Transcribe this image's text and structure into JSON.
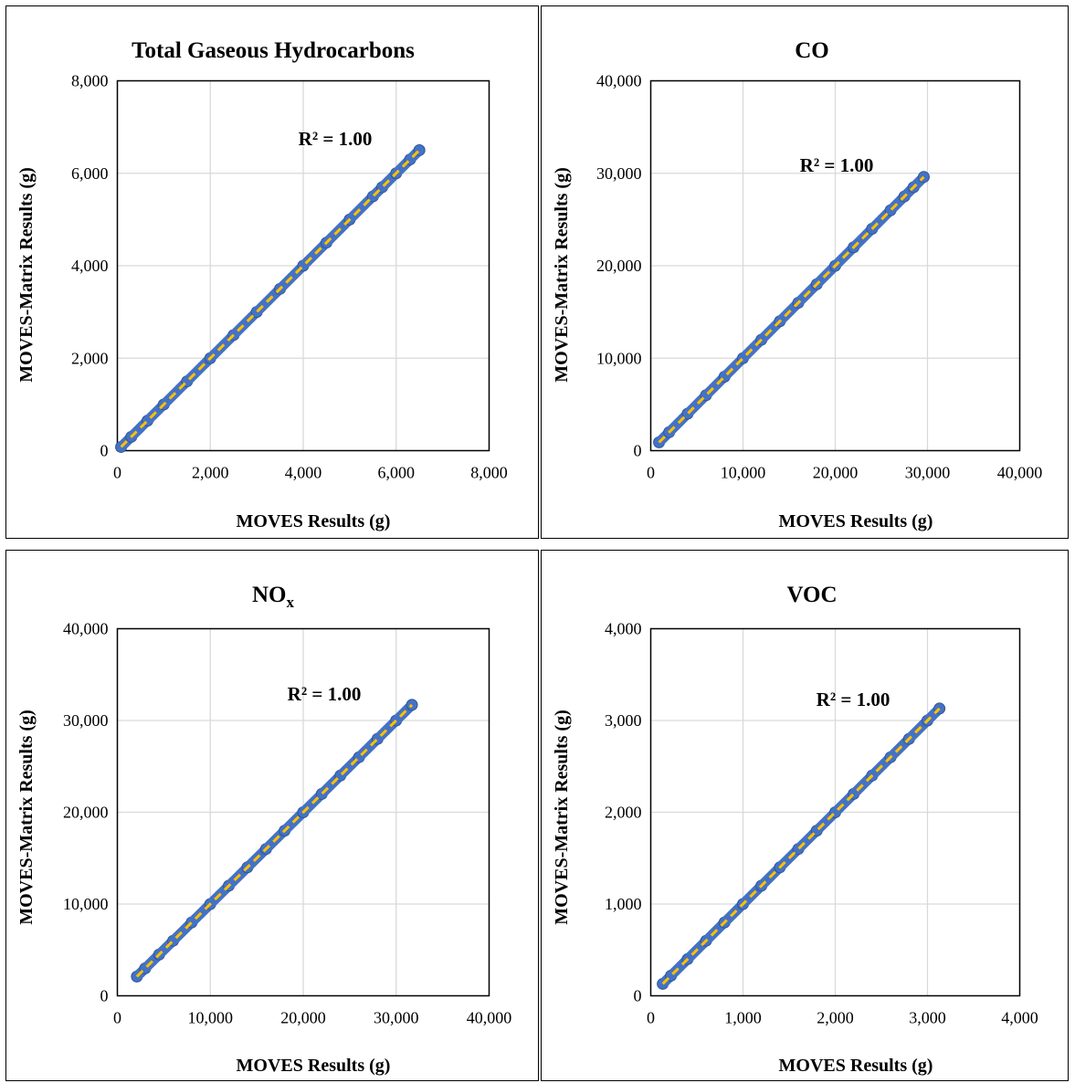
{
  "chart_data": [
    {
      "type": "scatter",
      "title": "Total Gaseous Hydrocarbons",
      "title_sub": "",
      "xlabel": "MOVES  Results (g)",
      "ylabel": "MOVES-Matrix  Results (g)",
      "xlim": [
        0,
        8000
      ],
      "ylim": [
        0,
        8000
      ],
      "xticks": [
        "0",
        "2,000",
        "4,000",
        "6,000",
        "8,000"
      ],
      "yticks": [
        "0",
        "2,000",
        "4,000",
        "6,000",
        "8,000"
      ],
      "grid": true,
      "annotation": "R² = 1.00",
      "series": [
        {
          "x": [
            80,
            300,
            650,
            1000,
            1500,
            2000,
            2500,
            3000,
            3500,
            4000,
            4500,
            5000,
            5500,
            5700,
            6000,
            6300,
            6500
          ],
          "y": [
            80,
            300,
            650,
            1000,
            1500,
            2000,
            2500,
            3000,
            3500,
            4000,
            4500,
            5000,
            5500,
            5700,
            6000,
            6300,
            6500
          ]
        }
      ],
      "trendline": {
        "x": [
          80,
          6500
        ],
        "y": [
          80,
          6500
        ]
      },
      "colors": {
        "marker": "#4472c4",
        "trendline": "#ffc000"
      }
    },
    {
      "type": "scatter",
      "title": "CO",
      "title_sub": "",
      "xlabel": "MOVES  Results (g)",
      "ylabel": "MOVES-Matrix  Results (g)",
      "xlim": [
        0,
        40000
      ],
      "ylim": [
        0,
        40000
      ],
      "xticks": [
        "0",
        "10,000",
        "20,000",
        "30,000",
        "40,000"
      ],
      "yticks": [
        "0",
        "10,000",
        "20,000",
        "30,000",
        "40,000"
      ],
      "grid": true,
      "annotation": "R² = 1.00",
      "series": [
        {
          "x": [
            900,
            2000,
            4000,
            6000,
            8000,
            10000,
            12000,
            14000,
            16000,
            18000,
            20000,
            22000,
            24000,
            26000,
            27500,
            28500,
            29600
          ],
          "y": [
            900,
            2000,
            4000,
            6000,
            8000,
            10000,
            12000,
            14000,
            16000,
            18000,
            20000,
            22000,
            24000,
            26000,
            27500,
            28500,
            29600
          ]
        }
      ],
      "trendline": {
        "x": [
          900,
          29600
        ],
        "y": [
          900,
          29600
        ]
      },
      "colors": {
        "marker": "#4472c4",
        "trendline": "#ffc000"
      }
    },
    {
      "type": "scatter",
      "title": "NO",
      "title_sub": "x",
      "xlabel": "MOVES  Results (g)",
      "ylabel": "MOVES-Matrix  Results (g)",
      "xlim": [
        0,
        40000
      ],
      "ylim": [
        0,
        40000
      ],
      "xticks": [
        "0",
        "10,000",
        "20,000",
        "30,000",
        "40,000"
      ],
      "yticks": [
        "0",
        "10,000",
        "20,000",
        "30,000",
        "40,000"
      ],
      "grid": true,
      "annotation": "R² = 1.00",
      "series": [
        {
          "x": [
            2100,
            3000,
            4500,
            6000,
            8000,
            10000,
            12000,
            14000,
            16000,
            18000,
            20000,
            22000,
            24000,
            26000,
            28000,
            30000,
            31700
          ],
          "y": [
            2100,
            3000,
            4500,
            6000,
            8000,
            10000,
            12000,
            14000,
            16000,
            18000,
            20000,
            22000,
            24000,
            26000,
            28000,
            30000,
            31700
          ]
        }
      ],
      "trendline": {
        "x": [
          2100,
          31700
        ],
        "y": [
          2100,
          31700
        ]
      },
      "colors": {
        "marker": "#4472c4",
        "trendline": "#ffc000"
      }
    },
    {
      "type": "scatter",
      "title": "VOC",
      "title_sub": "",
      "xlabel": "MOVES  Results (g)",
      "ylabel": "MOVES-Matrix  Results (g)",
      "xlim": [
        0,
        4000
      ],
      "ylim": [
        0,
        4000
      ],
      "xticks": [
        "0",
        "1,000",
        "2,000",
        "3,000",
        "4,000"
      ],
      "yticks": [
        "0",
        "1,000",
        "2,000",
        "3,000",
        "4,000"
      ],
      "grid": true,
      "annotation": "R² = 1.00",
      "series": [
        {
          "x": [
            130,
            220,
            400,
            600,
            800,
            1000,
            1200,
            1400,
            1600,
            1800,
            2000,
            2200,
            2400,
            2600,
            2800,
            3000,
            3130
          ],
          "y": [
            130,
            220,
            400,
            600,
            800,
            1000,
            1200,
            1400,
            1600,
            1800,
            2000,
            2200,
            2400,
            2600,
            2800,
            3000,
            3130
          ]
        }
      ],
      "trendline": {
        "x": [
          130,
          3130
        ],
        "y": [
          130,
          3130
        ]
      },
      "colors": {
        "marker": "#4472c4",
        "trendline": "#ffc000"
      }
    }
  ]
}
